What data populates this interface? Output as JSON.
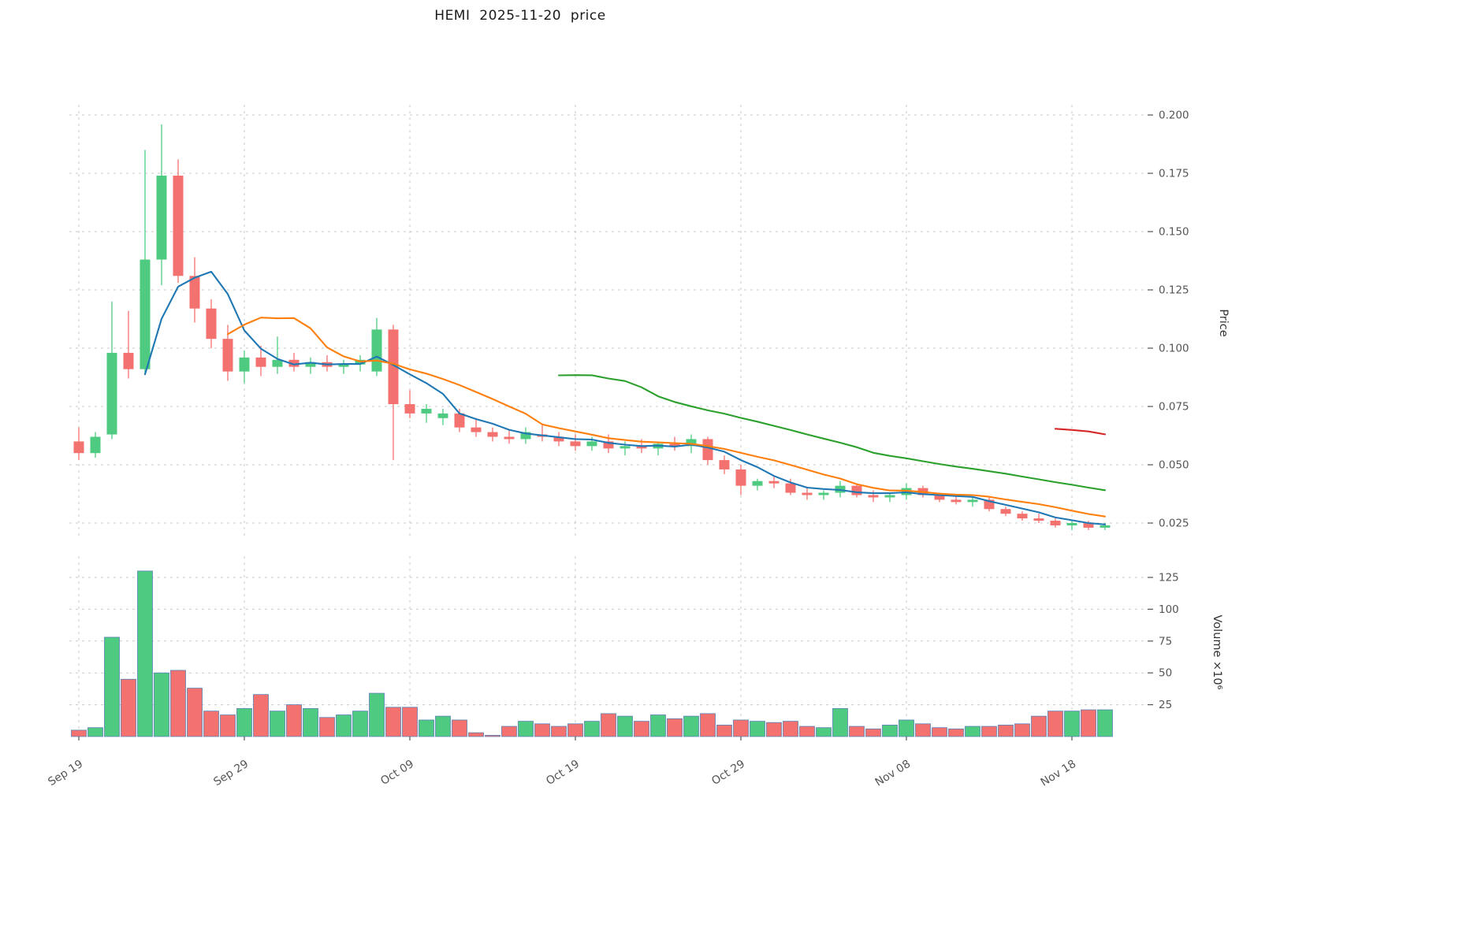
{
  "title": "HEMI  2025-11-20  price",
  "colors": {
    "up": "#4ecb81",
    "down": "#f3716f",
    "volume_edge": "#5a82b4",
    "grid": "#c9c9c9",
    "text": "#555555",
    "title_text": "#1a1a1a"
  },
  "axes": {
    "price_label": "Price",
    "volume_label": "Volume ×10⁶",
    "price_ticks": [
      "0.200",
      "0.175",
      "0.150",
      "0.125",
      "0.100",
      "0.075",
      "0.050",
      "0.025"
    ],
    "volume_ticks": [
      "125",
      "100",
      "75",
      "50",
      "25"
    ],
    "x_ticks": [
      {
        "label": "Sep 19",
        "index": 0
      },
      {
        "label": "Sep 29",
        "index": 10
      },
      {
        "label": "Oct 09",
        "index": 20
      },
      {
        "label": "Oct 19",
        "index": 30
      },
      {
        "label": "Oct 29",
        "index": 40
      },
      {
        "label": "Nov 08",
        "index": 50
      },
      {
        "label": "Nov 18",
        "index": 60
      }
    ]
  },
  "chart_data": {
    "type": "candlestick",
    "title": "HEMI  2025-11-20  price",
    "ylabel": "Price",
    "ylabel2": "Volume ×10⁶",
    "price_range": [
      0.025,
      0.2
    ],
    "volume_range_millions": [
      0,
      125
    ],
    "grid": "dashed",
    "moving_averages": [
      {
        "window": 5,
        "color": "#1f77b4"
      },
      {
        "window": 10,
        "color": "#ff7f0e"
      },
      {
        "window": 30,
        "color": "#2ca02c"
      },
      {
        "window": 60,
        "color": "#d62728"
      }
    ],
    "columns": [
      "date",
      "open",
      "high",
      "low",
      "close",
      "volume_millions"
    ],
    "ohlc": [
      [
        "2025-09-19",
        0.06,
        0.066,
        0.052,
        0.055,
        5
      ],
      [
        "2025-09-20",
        0.055,
        0.064,
        0.053,
        0.062,
        7
      ],
      [
        "2025-09-21",
        0.063,
        0.12,
        0.061,
        0.098,
        78
      ],
      [
        "2025-09-22",
        0.098,
        0.116,
        0.087,
        0.091,
        45
      ],
      [
        "2025-09-23",
        0.091,
        0.185,
        0.089,
        0.138,
        130
      ],
      [
        "2025-09-24",
        0.138,
        0.196,
        0.127,
        0.174,
        50
      ],
      [
        "2025-09-25",
        0.174,
        0.181,
        0.128,
        0.131,
        52
      ],
      [
        "2025-09-26",
        0.131,
        0.139,
        0.111,
        0.117,
        38
      ],
      [
        "2025-09-27",
        0.117,
        0.121,
        0.1,
        0.104,
        20
      ],
      [
        "2025-09-28",
        0.104,
        0.11,
        0.086,
        0.09,
        17
      ],
      [
        "2025-09-29",
        0.09,
        0.099,
        0.085,
        0.096,
        22
      ],
      [
        "2025-09-30",
        0.096,
        0.101,
        0.088,
        0.092,
        33
      ],
      [
        "2025-10-01",
        0.092,
        0.105,
        0.089,
        0.095,
        20
      ],
      [
        "2025-10-02",
        0.095,
        0.098,
        0.09,
        0.092,
        25
      ],
      [
        "2025-10-03",
        0.092,
        0.096,
        0.089,
        0.094,
        22
      ],
      [
        "2025-10-04",
        0.094,
        0.097,
        0.09,
        0.092,
        15
      ],
      [
        "2025-10-05",
        0.092,
        0.095,
        0.089,
        0.093,
        17
      ],
      [
        "2025-10-06",
        0.093,
        0.097,
        0.09,
        0.095,
        20
      ],
      [
        "2025-10-07",
        0.09,
        0.113,
        0.088,
        0.108,
        34
      ],
      [
        "2025-10-08",
        0.108,
        0.11,
        0.052,
        0.076,
        23
      ],
      [
        "2025-10-09",
        0.076,
        0.082,
        0.07,
        0.072,
        23
      ],
      [
        "2025-10-10",
        0.072,
        0.076,
        0.068,
        0.074,
        13
      ],
      [
        "2025-10-11",
        0.07,
        0.074,
        0.067,
        0.072,
        16
      ],
      [
        "2025-10-12",
        0.072,
        0.074,
        0.064,
        0.066,
        13
      ],
      [
        "2025-10-13",
        0.066,
        0.07,
        0.062,
        0.064,
        3
      ],
      [
        "2025-10-14",
        0.064,
        0.066,
        0.06,
        0.062,
        1
      ],
      [
        "2025-10-15",
        0.062,
        0.065,
        0.059,
        0.061,
        8
      ],
      [
        "2025-10-16",
        0.061,
        0.066,
        0.059,
        0.064,
        12
      ],
      [
        "2025-10-17",
        0.063,
        0.067,
        0.06,
        0.062,
        10
      ],
      [
        "2025-10-18",
        0.062,
        0.064,
        0.058,
        0.06,
        8
      ],
      [
        "2025-10-19",
        0.06,
        0.063,
        0.056,
        0.058,
        10
      ],
      [
        "2025-10-20",
        0.058,
        0.062,
        0.056,
        0.06,
        12
      ],
      [
        "2025-10-21",
        0.06,
        0.063,
        0.055,
        0.057,
        18
      ],
      [
        "2025-10-22",
        0.057,
        0.06,
        0.054,
        0.058,
        16
      ],
      [
        "2025-10-23",
        0.058,
        0.061,
        0.055,
        0.057,
        12
      ],
      [
        "2025-10-24",
        0.057,
        0.06,
        0.054,
        0.059,
        17
      ],
      [
        "2025-10-25",
        0.059,
        0.062,
        0.056,
        0.058,
        14
      ],
      [
        "2025-10-26",
        0.058,
        0.063,
        0.055,
        0.061,
        16
      ],
      [
        "2025-10-27",
        0.061,
        0.062,
        0.05,
        0.052,
        18
      ],
      [
        "2025-10-28",
        0.052,
        0.054,
        0.046,
        0.048,
        9
      ],
      [
        "2025-10-29",
        0.048,
        0.05,
        0.037,
        0.041,
        13
      ],
      [
        "2025-10-30",
        0.041,
        0.044,
        0.039,
        0.043,
        12
      ],
      [
        "2025-10-31",
        0.043,
        0.045,
        0.04,
        0.042,
        11
      ],
      [
        "2025-11-01",
        0.042,
        0.044,
        0.037,
        0.038,
        12
      ],
      [
        "2025-11-02",
        0.038,
        0.04,
        0.035,
        0.037,
        8
      ],
      [
        "2025-11-03",
        0.037,
        0.039,
        0.035,
        0.038,
        7
      ],
      [
        "2025-11-04",
        0.038,
        0.043,
        0.036,
        0.041,
        22
      ],
      [
        "2025-11-05",
        0.041,
        0.042,
        0.036,
        0.037,
        8
      ],
      [
        "2025-11-06",
        0.037,
        0.039,
        0.034,
        0.036,
        6
      ],
      [
        "2025-11-07",
        0.036,
        0.038,
        0.034,
        0.037,
        9
      ],
      [
        "2025-11-08",
        0.037,
        0.042,
        0.035,
        0.04,
        13
      ],
      [
        "2025-11-09",
        0.04,
        0.041,
        0.036,
        0.037,
        10
      ],
      [
        "2025-11-10",
        0.037,
        0.038,
        0.034,
        0.035,
        7
      ],
      [
        "2025-11-11",
        0.035,
        0.037,
        0.033,
        0.034,
        6
      ],
      [
        "2025-11-12",
        0.034,
        0.036,
        0.032,
        0.035,
        8
      ],
      [
        "2025-11-13",
        0.035,
        0.036,
        0.03,
        0.031,
        8
      ],
      [
        "2025-11-14",
        0.031,
        0.032,
        0.028,
        0.029,
        9
      ],
      [
        "2025-11-15",
        0.029,
        0.03,
        0.026,
        0.027,
        10
      ],
      [
        "2025-11-16",
        0.027,
        0.029,
        0.025,
        0.026,
        16
      ],
      [
        "2025-11-17",
        0.026,
        0.027,
        0.023,
        0.024,
        20
      ],
      [
        "2025-11-18",
        0.024,
        0.026,
        0.022,
        0.025,
        20
      ],
      [
        "2025-11-19",
        0.025,
        0.026,
        0.022,
        0.023,
        21
      ],
      [
        "2025-11-20",
        0.023,
        0.025,
        0.022,
        0.024,
        21
      ]
    ]
  }
}
